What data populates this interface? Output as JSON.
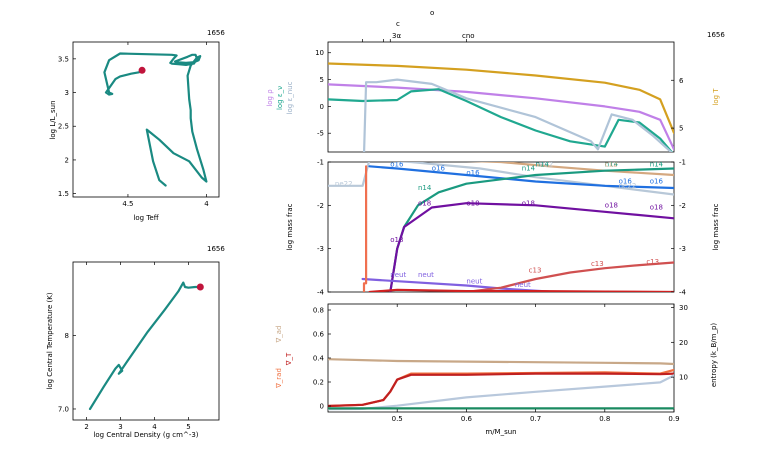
{
  "chart_data": [
    {
      "type": "line",
      "panel": "hr-diagram",
      "model_number": "1656",
      "xlabel": "log Teff",
      "ylabel": "log L/L_sun",
      "xlim": [
        4.85,
        3.92
      ],
      "ylim": [
        1.45,
        3.75
      ],
      "xticks": [
        {
          "v": 4.5,
          "label": "4.5"
        },
        {
          "v": 4.0,
          "label": "4"
        }
      ],
      "yticks": [
        {
          "v": 1.5,
          "label": "1.5"
        },
        {
          "v": 2.0,
          "label": "2"
        },
        {
          "v": 2.5,
          "label": "2.5"
        },
        {
          "v": 3.0,
          "label": "3"
        },
        {
          "v": 3.5,
          "label": "3.5"
        }
      ],
      "track_color": "#1a8a82",
      "marker_color": "#c0143c",
      "track": {
        "x": [
          4.26,
          4.3,
          4.34,
          4.38,
          4.3,
          4.21,
          4.11,
          4.03,
          4.0,
          4.02,
          4.06,
          4.09,
          4.1,
          4.1,
          4.11,
          4.12,
          4.1,
          4.06,
          4.04,
          4.05,
          4.08,
          4.13,
          4.19,
          4.2,
          4.12,
          4.09,
          4.07,
          4.06,
          4.08,
          4.13,
          4.18,
          4.22,
          4.23,
          4.21,
          4.19,
          4.22,
          4.55,
          4.62,
          4.65,
          4.62,
          4.6,
          4.62,
          4.64,
          4.58,
          4.55,
          4.48,
          4.43,
          4.41
        ],
        "y": [
          1.62,
          1.7,
          1.98,
          2.45,
          2.3,
          2.1,
          1.98,
          1.74,
          1.68,
          1.86,
          2.16,
          2.42,
          2.62,
          2.74,
          2.9,
          3.25,
          3.4,
          3.52,
          3.54,
          3.48,
          3.45,
          3.44,
          3.45,
          3.46,
          3.53,
          3.56,
          3.56,
          3.5,
          3.43,
          3.41,
          3.42,
          3.43,
          3.44,
          3.5,
          3.55,
          3.56,
          3.58,
          3.48,
          3.3,
          3.0,
          2.98,
          2.97,
          3.0,
          3.2,
          3.24,
          3.28,
          3.3,
          3.33
        ]
      },
      "marker": {
        "x": 4.41,
        "y": 3.33
      }
    },
    {
      "type": "line",
      "panel": "central-conditions",
      "model_number": "1656",
      "xlabel": "log Central Density (g cm^-3)",
      "ylabel": "log Central Temperature (K)",
      "xlim": [
        1.6,
        5.9
      ],
      "ylim": [
        6.85,
        9.0
      ],
      "xticks": [
        {
          "v": 2,
          "label": "2"
        },
        {
          "v": 3,
          "label": "3"
        },
        {
          "v": 4,
          "label": "4"
        },
        {
          "v": 5,
          "label": "5"
        }
      ],
      "yticks": [
        {
          "v": 7,
          "label": "7.0"
        },
        {
          "v": 8,
          "label": "8"
        }
      ],
      "track_color": "#1a8a82",
      "marker_color": "#c0143c",
      "track": {
        "x": [
          2.1,
          2.5,
          2.85,
          2.95,
          3.05,
          2.95,
          3.2,
          3.8,
          4.3,
          4.7,
          4.85,
          4.9,
          5.0,
          5.2,
          5.35
        ],
        "y": [
          7.0,
          7.3,
          7.55,
          7.6,
          7.52,
          7.48,
          7.65,
          8.05,
          8.35,
          8.6,
          8.72,
          8.66,
          8.65,
          8.66,
          8.66
        ]
      },
      "marker": {
        "x": 5.35,
        "y": 8.66
      }
    },
    {
      "type": "line",
      "panel": "profile-structure",
      "model_number": "1656",
      "xlim": [
        0.4,
        0.9
      ],
      "ylim": [
        -8.5,
        12
      ],
      "ylim_right": [
        4.5,
        6.8
      ],
      "ylabel_left": [
        "log ρ",
        "log ε_ν",
        "log ε_nuc"
      ],
      "ylabel_right": "log T",
      "top_labels": [
        "c",
        "o",
        "3α",
        "cno"
      ],
      "yticks": [
        {
          "v": -5,
          "label": "-5"
        },
        {
          "v": 0,
          "label": "0"
        },
        {
          "v": 5,
          "label": "5"
        },
        {
          "v": 10,
          "label": "10"
        }
      ],
      "yticks_right": [
        {
          "v": 5,
          "label": "5"
        },
        {
          "v": 6,
          "label": "6"
        }
      ],
      "series": [
        {
          "key": "logT",
          "color": "#d4a020",
          "x": [
            0.4,
            0.5,
            0.6,
            0.7,
            0.8,
            0.85,
            0.88,
            0.9
          ],
          "y": [
            6.35,
            6.3,
            6.22,
            6.1,
            5.95,
            5.8,
            5.6,
            4.9
          ],
          "axis": "right"
        },
        {
          "key": "logrho",
          "color": "#c080e8",
          "x": [
            0.4,
            0.5,
            0.6,
            0.7,
            0.8,
            0.85,
            0.88,
            0.9
          ],
          "y": [
            4.1,
            3.5,
            2.7,
            1.5,
            0.0,
            -1.0,
            -2.5,
            -8
          ]
        },
        {
          "key": "eps_nu",
          "color": "#20a890",
          "x": [
            0.4,
            0.45,
            0.5,
            0.52,
            0.56,
            0.6,
            0.65,
            0.7,
            0.75,
            0.8,
            0.82,
            0.85,
            0.88,
            0.9
          ],
          "y": [
            1.3,
            1.0,
            1.2,
            2.8,
            3.2,
            1.0,
            -2.0,
            -4.5,
            -6.5,
            -7.5,
            -2.5,
            -3,
            -6,
            -9
          ]
        },
        {
          "key": "eps_nuc",
          "color": "#b0c4d8",
          "x": [
            0.4,
            0.452,
            0.455,
            0.47,
            0.5,
            0.55,
            0.6,
            0.7,
            0.78,
            0.79,
            0.81,
            0.84,
            0.87,
            0.9
          ],
          "y": [
            -9,
            -9,
            4.5,
            4.5,
            5.0,
            4.2,
            1.5,
            -2.0,
            -6.5,
            -8.0,
            -1.5,
            -2.5,
            -5.5,
            -9
          ]
        }
      ]
    },
    {
      "type": "line",
      "panel": "abundances",
      "xlim": [
        0.4,
        0.9
      ],
      "ylim": [
        -4,
        -1
      ],
      "ylabel": "log mass frac",
      "ylabel_right": "log mass frac",
      "yticks": [
        {
          "v": -4,
          "label": "-4"
        },
        {
          "v": -3,
          "label": "-3"
        },
        {
          "v": -2,
          "label": "-2"
        },
        {
          "v": -1,
          "label": "-1"
        }
      ],
      "yticks_right": [
        {
          "v": -4,
          "label": "-4"
        },
        {
          "v": -3,
          "label": "-3"
        },
        {
          "v": -2,
          "label": "-2"
        },
        {
          "v": -1,
          "label": "-1"
        }
      ],
      "series": [
        {
          "name": "ne22",
          "color": "#b8c8d8",
          "x": [
            0.4,
            0.45,
            0.46,
            0.52,
            0.62,
            0.7,
            0.8,
            0.9
          ],
          "y": [
            -1.55,
            -1.55,
            -0.95,
            -1.0,
            -1.15,
            -1.35,
            -1.55,
            -1.75
          ]
        },
        {
          "name": "c12",
          "color": "#d4a880",
          "x": [
            0.46,
            0.55,
            0.65,
            0.72,
            0.8,
            0.9
          ],
          "y": [
            -0.95,
            -0.95,
            -1.0,
            -1.1,
            -1.2,
            -1.3
          ]
        },
        {
          "name": "o16",
          "color": "#2070e0",
          "x": [
            0.46,
            0.5,
            0.6,
            0.7,
            0.8,
            0.9
          ],
          "y": [
            -1.1,
            -1.15,
            -1.3,
            -1.45,
            -1.55,
            -1.6
          ]
        },
        {
          "name": "n14",
          "color": "#1a9a80",
          "x": [
            0.49,
            0.5,
            0.51,
            0.53,
            0.56,
            0.6,
            0.65,
            0.7,
            0.8,
            0.9
          ],
          "y": [
            -4,
            -3.0,
            -2.5,
            -2.0,
            -1.7,
            -1.5,
            -1.4,
            -1.3,
            -1.2,
            -1.15
          ]
        },
        {
          "name": "o18",
          "color": "#7010a0",
          "x": [
            0.49,
            0.5,
            0.51,
            0.55,
            0.6,
            0.7,
            0.8,
            0.9
          ],
          "y": [
            -4,
            -3.0,
            -2.5,
            -2.05,
            -1.95,
            -2.0,
            -2.15,
            -2.3
          ]
        },
        {
          "name": "neut",
          "color": "#8060e0",
          "x": [
            0.45,
            0.5,
            0.6,
            0.65,
            0.7,
            0.73
          ],
          "y": [
            -3.7,
            -3.75,
            -3.85,
            -3.92,
            -3.97,
            -4.0
          ]
        },
        {
          "name": "c13",
          "color": "#d05050",
          "x": [
            0.6,
            0.65,
            0.7,
            0.75,
            0.8,
            0.85,
            0.9
          ],
          "y": [
            -4.0,
            -3.9,
            -3.7,
            -3.55,
            -3.45,
            -3.38,
            -3.32
          ]
        },
        {
          "name": "",
          "color": "#f07050",
          "x": [
            0.452,
            0.452,
            0.455,
            0.455
          ],
          "y": [
            -4,
            -3.8,
            -3.8,
            -1.1
          ]
        },
        {
          "name": "",
          "color": "#d02020",
          "x": [
            0.46,
            0.5,
            0.6,
            0.7,
            0.8,
            0.9
          ],
          "y": [
            -4.0,
            -3.95,
            -3.98,
            -3.98,
            -3.99,
            -4.0
          ]
        }
      ],
      "labels": [
        {
          "name": "ne22",
          "x": 0.41,
          "y": -1.55
        },
        {
          "name": "ne22",
          "x": 0.585,
          "y": -0.95
        },
        {
          "name": "o16",
          "x": 0.49,
          "y": -1.1
        },
        {
          "name": "o16",
          "x": 0.55,
          "y": -1.2
        },
        {
          "name": "o16",
          "x": 0.6,
          "y": -1.3
        },
        {
          "name": "o16",
          "x": 0.82,
          "y": -1.5
        },
        {
          "name": "o16",
          "x": 0.865,
          "y": -1.5
        },
        {
          "name": "ne22",
          "x": 0.7,
          "y": -1.1
        },
        {
          "name": "ne22",
          "x": 0.82,
          "y": -1.6
        },
        {
          "name": "n14",
          "x": 0.53,
          "y": -1.65
        },
        {
          "name": "n14",
          "x": 0.68,
          "y": -1.2
        },
        {
          "name": "n14",
          "x": 0.8,
          "y": -1.1
        },
        {
          "name": "n14",
          "x": 0.865,
          "y": -1.1
        },
        {
          "name": "o18",
          "x": 0.53,
          "y": -2.0
        },
        {
          "name": "o18",
          "x": 0.6,
          "y": -2.0
        },
        {
          "name": "o18",
          "x": 0.68,
          "y": -2.0
        },
        {
          "name": "o18",
          "x": 0.8,
          "y": -2.05
        },
        {
          "name": "o18",
          "x": 0.865,
          "y": -2.1
        },
        {
          "name": "o18",
          "x": 0.49,
          "y": -2.85
        },
        {
          "name": "neut",
          "x": 0.49,
          "y": -3.65
        },
        {
          "name": "neut",
          "x": 0.53,
          "y": -3.65
        },
        {
          "name": "neut",
          "x": 0.6,
          "y": -3.8
        },
        {
          "name": "neut",
          "x": 0.67,
          "y": -3.88
        },
        {
          "name": "c13",
          "x": 0.69,
          "y": -3.55
        },
        {
          "name": "c13",
          "x": 0.78,
          "y": -3.4
        },
        {
          "name": "c13",
          "x": 0.86,
          "y": -3.35
        },
        {
          "name": "c12",
          "x": 0.69,
          "y": -0.95
        },
        {
          "name": "c12",
          "x": 0.8,
          "y": -1.1
        },
        {
          "name": "n14",
          "x": 0.7,
          "y": -1.1
        }
      ]
    },
    {
      "type": "line",
      "panel": "gradients-entropy",
      "xlim": [
        0.4,
        0.9
      ],
      "ylim": [
        -0.05,
        0.85
      ],
      "ylim_right": [
        0,
        31
      ],
      "xlabel": "m/M_sun",
      "ylabel_left": [
        "∇_ad",
        "∇_T",
        "∇_rad"
      ],
      "ylabel_right": "entropy (k_B/m_p)",
      "xticks": [
        {
          "v": 0.5,
          "label": "0.5"
        },
        {
          "v": 0.6,
          "label": "0.6"
        },
        {
          "v": 0.7,
          "label": "0.7"
        },
        {
          "v": 0.8,
          "label": "0.8"
        },
        {
          "v": 0.9,
          "label": "0.9"
        }
      ],
      "yticks": [
        {
          "v": 0,
          "label": "0"
        },
        {
          "v": 0.2,
          "label": "0.2"
        },
        {
          "v": 0.4,
          "label": "0.4"
        },
        {
          "v": 0.6,
          "label": "0.6"
        },
        {
          "v": 0.8,
          "label": "0.8"
        }
      ],
      "yticks_right": [
        {
          "v": 10,
          "label": "10"
        },
        {
          "v": 20,
          "label": "20"
        },
        {
          "v": 30,
          "label": "30"
        }
      ],
      "series": [
        {
          "key": "grad_ad",
          "color": "#c8a888",
          "x": [
            0.4,
            0.5,
            0.6,
            0.7,
            0.8,
            0.88,
            0.9
          ],
          "y": [
            0.39,
            0.375,
            0.37,
            0.365,
            0.36,
            0.355,
            0.35
          ]
        },
        {
          "key": "grad_rad",
          "color": "#f07040",
          "x": [
            0.4,
            0.45,
            0.48,
            0.49,
            0.5,
            0.52,
            0.6,
            0.7,
            0.8,
            0.88,
            0.9
          ],
          "y": [
            0.0,
            0.01,
            0.05,
            0.12,
            0.22,
            0.27,
            0.27,
            0.275,
            0.28,
            0.27,
            0.3
          ]
        },
        {
          "key": "grad_T",
          "color": "#c02020",
          "x": [
            0.4,
            0.45,
            0.48,
            0.49,
            0.5,
            0.52,
            0.6,
            0.7,
            0.8,
            0.88,
            0.9
          ],
          "y": [
            0.0,
            0.01,
            0.05,
            0.12,
            0.22,
            0.26,
            0.26,
            0.27,
            0.27,
            0.265,
            0.27
          ]
        },
        {
          "key": "entropy",
          "color": "#b8c8dc",
          "axis": "right",
          "x": [
            0.4,
            0.45,
            0.5,
            0.6,
            0.7,
            0.8,
            0.88,
            0.9
          ],
          "y": [
            0.8,
            0.9,
            1.8,
            4.2,
            5.8,
            7.3,
            8.5,
            10.5
          ]
        },
        {
          "key": "flat",
          "color": "#1a8a60",
          "x": [
            0.4,
            0.9
          ],
          "y": [
            -0.02,
            -0.02
          ]
        }
      ]
    }
  ]
}
